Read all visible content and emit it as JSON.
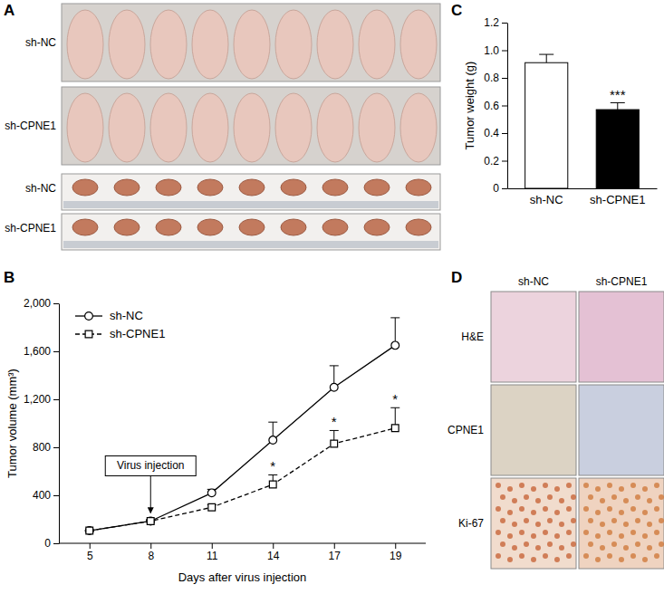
{
  "chart_data": [
    {
      "type": "line",
      "x_label": "Days after virus injection",
      "y_label": "Tumor volume (mm³)",
      "categories": [
        "5",
        "8",
        "11",
        "14",
        "17",
        "19"
      ],
      "series": [
        {
          "name": "sh-NC",
          "color": "#000000",
          "marker": "circle",
          "line_style": "solid",
          "values": [
            105,
            185,
            420,
            860,
            1300,
            1650
          ],
          "errors": [
            0,
            10,
            30,
            150,
            180,
            230
          ]
        },
        {
          "name": "sh-CPNE1",
          "color": "#000000",
          "marker": "square",
          "line_style": "dashed",
          "values": [
            105,
            185,
            300,
            490,
            830,
            960
          ],
          "errors": [
            0,
            10,
            20,
            80,
            110,
            170
          ]
        }
      ],
      "ylim": [
        0,
        2000
      ],
      "yticks": [
        0,
        400,
        800,
        {
          "value": 1200,
          "label": "1,200"
        },
        {
          "value": 1600,
          "label": "1,600"
        },
        {
          "value": 2000,
          "label": "2,000"
        }
      ],
      "legend": "upper left",
      "annotations": [
        {
          "text": "Virus injection",
          "x": "8"
        },
        {
          "text": "*",
          "x": "14",
          "series": 1
        },
        {
          "text": "*",
          "x": "17",
          "series": 1
        },
        {
          "text": "*",
          "x": "19",
          "series": 1
        }
      ]
    },
    {
      "type": "bar",
      "y_label": "Tumor weight (g)",
      "categories": [
        "sh-NC",
        "sh-CPNE1"
      ],
      "values": [
        0.91,
        0.57
      ],
      "errors": [
        0.06,
        0.05
      ],
      "colors": [
        "#ffffff",
        "#000000"
      ],
      "ylim": [
        0,
        1.2
      ],
      "yticks": [
        0,
        0.2,
        0.4,
        0.6,
        0.8,
        {
          "value": 1,
          "label": "1.0"
        },
        1.2
      ],
      "annotations": [
        {
          "text": "***",
          "category": "sh-CPNE1"
        }
      ]
    }
  ],
  "figure": {
    "panel_labels": [
      "A",
      "B",
      "C",
      "D"
    ],
    "mice_rows": [
      "sh-NC",
      "sh-CPNE1"
    ],
    "tumor_rows": [
      "sh-NC",
      "sh-CPNE1"
    ],
    "histology_columns": [
      "sh-NC",
      "sh-CPNE1"
    ],
    "histology_rows": [
      "H&E",
      "CPNE1",
      "Ki-67"
    ]
  }
}
